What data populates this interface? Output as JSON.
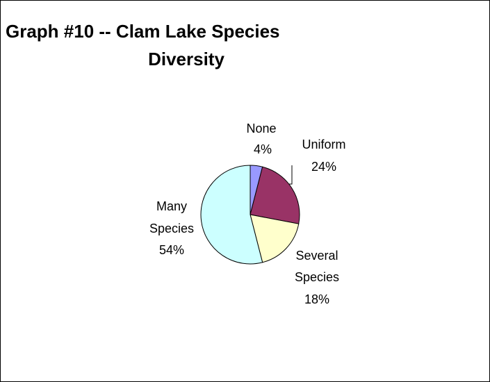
{
  "chart_data": {
    "type": "pie",
    "title_line1": "Graph #10 -- Clam Lake Species",
    "title_line2": "Diversity",
    "slices": [
      {
        "label": "None",
        "value": 4,
        "value_text": "4%",
        "color": "#9999ff"
      },
      {
        "label": "Uniform",
        "value": 24,
        "value_text": "24%",
        "color": "#993366"
      },
      {
        "label": "Several Species",
        "value": 18,
        "value_text": "18%",
        "color": "#ffffcc"
      },
      {
        "label": "Many Species",
        "value": 54,
        "value_text": "54%",
        "color": "#ccffff"
      }
    ],
    "legend": false
  }
}
